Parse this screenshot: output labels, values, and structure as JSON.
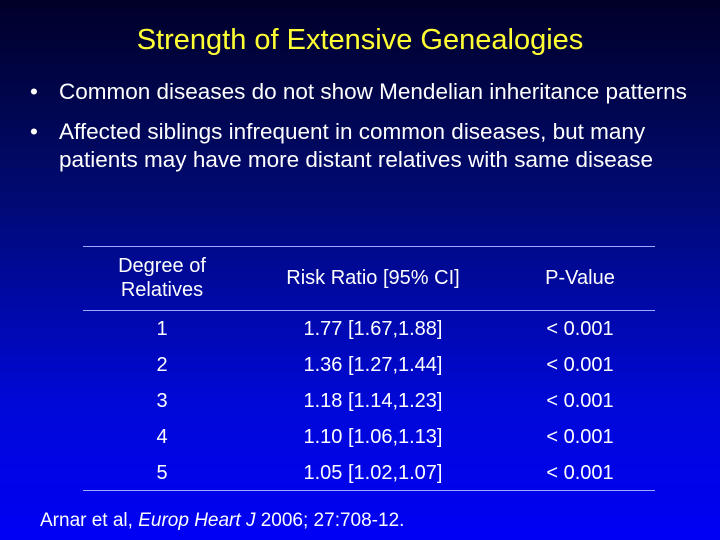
{
  "title": "Strength of Extensive Genealogies",
  "bullets": [
    "Common diseases do not show Mendelian inheritance patterns",
    "Affected siblings infrequent in common diseases, but many patients may have more distant relatives with same disease"
  ],
  "table": {
    "headers": [
      "Degree of Relatives",
      "Risk Ratio [95% CI]",
      "P-Value"
    ],
    "rows": [
      [
        "1",
        "1.77 [1.67,1.88]",
        "< 0.001"
      ],
      [
        "2",
        "1.36 [1.27,1.44]",
        "< 0.001"
      ],
      [
        "3",
        "1.18 [1.14,1.23]",
        "< 0.001"
      ],
      [
        "4",
        "1.10 [1.06,1.13]",
        "< 0.001"
      ],
      [
        "5",
        "1.05 [1.02,1.07]",
        "< 0.001"
      ]
    ]
  },
  "citation": {
    "authors": "Arnar et al, ",
    "journal": "Europ Heart J",
    "details": " 2006; 27:708-12."
  }
}
